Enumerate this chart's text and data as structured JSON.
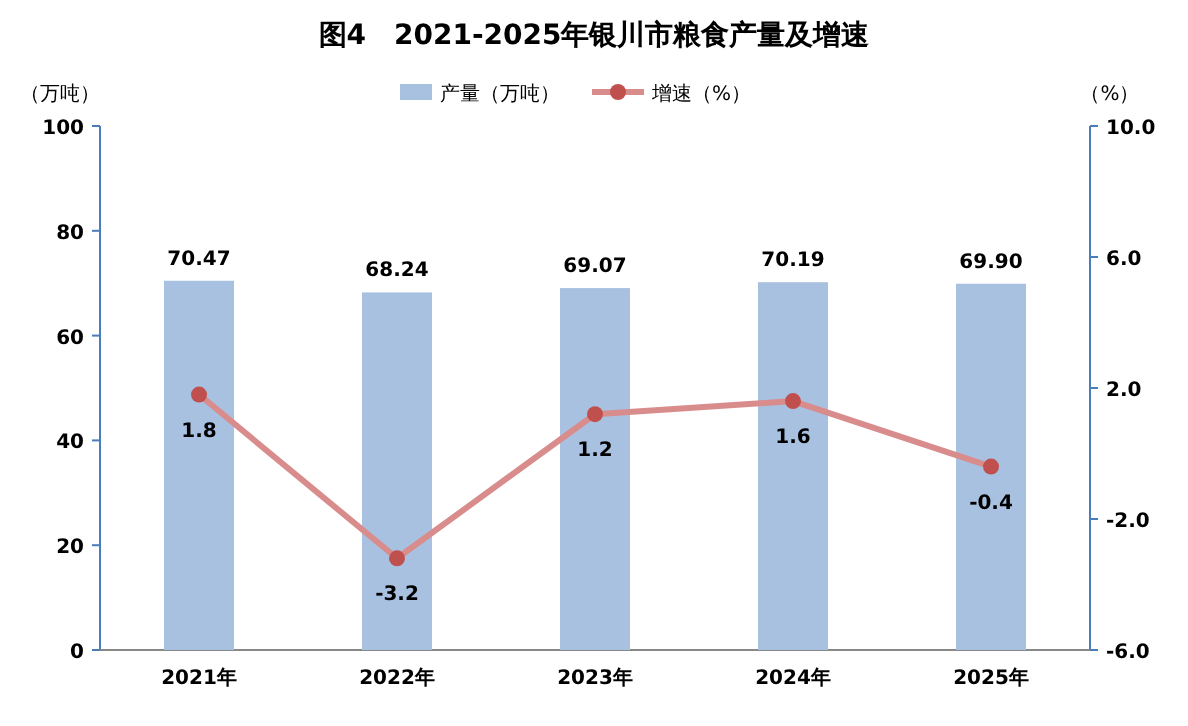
{
  "chart_data": {
    "type": "bar",
    "title": "图4　2021-2025年银川市粮食产量及增速",
    "ylabel": "（万吨）",
    "y2label": "（%）",
    "categories": [
      "2021年",
      "2022年",
      "2023年",
      "2024年",
      "2025年"
    ],
    "series": [
      {
        "name": "产量（万吨）",
        "color": "#a9c1e1",
        "values": [
          70.47,
          68.24,
          69.07,
          70.19,
          69.9
        ],
        "value_labels": [
          "70.47",
          "68.24",
          "69.07",
          "70.19",
          "69.90"
        ]
      },
      {
        "name": "增速（%）",
        "type": "line",
        "axis": "y2",
        "color": "#d98c8c",
        "marker": "circle",
        "values": [
          1.8,
          -3.2,
          1.2,
          1.6,
          -0.4
        ],
        "value_labels": [
          "1.8",
          "-3.2",
          "1.2",
          "1.6",
          "-0.4"
        ]
      }
    ],
    "ylim": [
      0,
      100
    ],
    "yticks": [
      0,
      20,
      40,
      60,
      80,
      100
    ],
    "y2lim": [
      -6,
      10
    ],
    "y2ticks": [
      {
        "value": -6,
        "label": "-6.0"
      },
      {
        "value": -2,
        "label": "-2.0"
      },
      {
        "value": 2,
        "label": "2.0"
      },
      {
        "value": 6,
        "label": "6.0"
      },
      {
        "value": 10,
        "label": "10.0"
      }
    ],
    "legend": "top",
    "grid": false
  }
}
